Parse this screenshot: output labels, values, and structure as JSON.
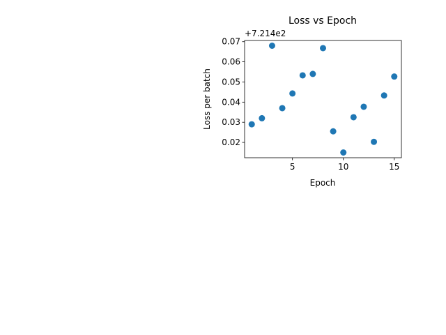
{
  "chart_data": {
    "type": "scatter",
    "title": "Loss vs Epoch",
    "xlabel": "Epoch",
    "ylabel": "Loss per batch",
    "offset_label": "+7.214e2",
    "x": [
      1,
      2,
      3,
      4,
      5,
      6,
      7,
      8,
      9,
      10,
      11,
      12,
      13,
      14,
      15
    ],
    "y_offset": [
      0.029,
      0.032,
      0.068,
      0.037,
      0.0443,
      0.0533,
      0.054,
      0.0668,
      0.0255,
      0.015,
      0.0325,
      0.0377,
      0.0203,
      0.0433,
      0.0527
    ],
    "xlim": [
      0.3,
      15.7
    ],
    "ylim": [
      0.0124,
      0.0706
    ],
    "x_ticks": [
      5,
      10,
      15
    ],
    "x_tick_labels": [
      "5",
      "10",
      "15"
    ],
    "y_ticks": [
      0.02,
      0.03,
      0.04,
      0.05,
      0.06,
      0.07
    ],
    "y_tick_labels": [
      "0.02",
      "0.03",
      "0.04",
      "0.05",
      "0.06",
      "0.07"
    ],
    "marker_color": "#1f77b4",
    "grid": false
  }
}
